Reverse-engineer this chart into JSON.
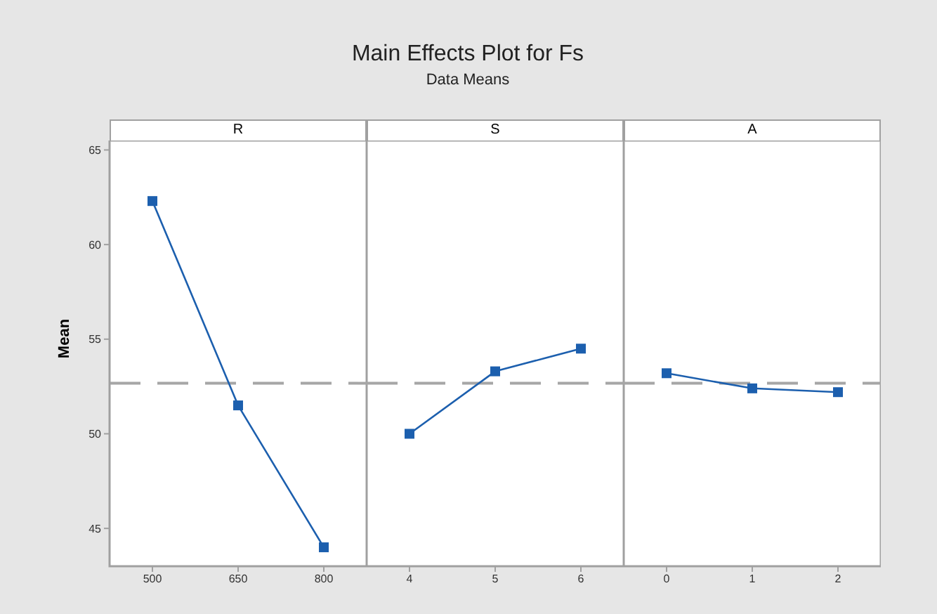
{
  "chart_data": [
    {
      "type": "line",
      "xlabel": "R",
      "ylabel": "Mean",
      "categories": [
        "500",
        "650",
        "800"
      ],
      "series": [
        {
          "color": "#1c5fae",
          "values": [
            62.3,
            51.5,
            44.0
          ]
        }
      ],
      "ylim": [
        43,
        65.5
      ],
      "yticks": [
        45,
        50,
        55,
        60,
        65
      ],
      "ref_lines": [
        {
          "axis": "y",
          "value": 52.67,
          "color": "#a6a6a6",
          "line_style": "dashed"
        }
      ],
      "marker": "square",
      "legend": false
    },
    {
      "type": "line",
      "title": "Main Effects Plot for Fs",
      "subtitle": "Data Means",
      "xlabel": "S",
      "categories": [
        "4",
        "5",
        "6"
      ],
      "series": [
        {
          "color": "#1c5fae",
          "values": [
            50.0,
            53.3,
            54.5
          ]
        }
      ],
      "ylim": [
        43,
        65.5
      ],
      "yticks": [
        45,
        50,
        55,
        60,
        65
      ],
      "tick_labels": "x",
      "ref_lines": [
        {
          "axis": "y",
          "value": 52.67,
          "color": "#a6a6a6",
          "line_style": "dashed"
        }
      ],
      "marker": "square",
      "legend": false
    },
    {
      "type": "line",
      "xlabel": "A",
      "categories": [
        "0",
        "1",
        "2"
      ],
      "series": [
        {
          "color": "#1c5fae",
          "values": [
            53.2,
            52.4,
            52.2
          ]
        }
      ],
      "ylim": [
        43,
        65.5
      ],
      "yticks": [
        45,
        50,
        55,
        60,
        65
      ],
      "tick_labels": "x",
      "ref_lines": [
        {
          "axis": "y",
          "value": 52.67,
          "color": "#a6a6a6",
          "line_style": "dashed"
        }
      ],
      "marker": "square",
      "legend": false
    }
  ]
}
